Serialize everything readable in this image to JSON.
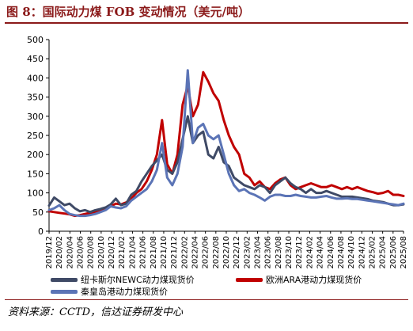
{
  "figure": {
    "title": "图 8：国际动力煤 FOB 变动情况（美元/吨）",
    "source": "资料来源：CCTD，信达证券研发中心"
  },
  "colors": {
    "newc": "#3f4a66",
    "ara": "#c00000",
    "qinhuangdao": "#5b74b6",
    "title": "#8b1a1a"
  },
  "chart_data": {
    "type": "line",
    "title": "",
    "xlabel": "",
    "ylabel": "",
    "ylim": [
      0,
      500
    ],
    "yticks": [
      0,
      50,
      100,
      150,
      200,
      250,
      300,
      350,
      400,
      450,
      500
    ],
    "grid": false,
    "legend_position": "bottom",
    "xticks": [
      "2019/12",
      "2020/03",
      "2020/06",
      "2020/09",
      "2020/12",
      "2021/03",
      "2021/06",
      "2021/09",
      "2021/12",
      "2022/03",
      "2022/06",
      "2022/09",
      "2022/12",
      "2023/03",
      "2023/06",
      "2023/09",
      "2023/12",
      "2024/03",
      "2024/06",
      "2024/09",
      "2024/12",
      "2025/03",
      "2025/06",
      "2025/09"
    ],
    "xticklabels": [
      "2019/12",
      "2020/02",
      "2020/04",
      "2020/06",
      "2020/08",
      "2020/10",
      "2020/12",
      "2021/02",
      "2021/04",
      "2021/06",
      "2021/08",
      "2021/10",
      "2021/12",
      "2022/02",
      "2022/04",
      "2022/06",
      "2022/08",
      "2022/10",
      "2022/12",
      "2023/02",
      "2023/04",
      "2023/06",
      "2023/08",
      "2023/10",
      "2023/12",
      "2024/02",
      "2024/04",
      "2024/06",
      "2024/08",
      "2024/10",
      "2024/12",
      "2025/02",
      "2025/04",
      "2025/06",
      "2025/08"
    ],
    "x": [
      "2019/12",
      "2020/01",
      "2020/02",
      "2020/03",
      "2020/04",
      "2020/05",
      "2020/06",
      "2020/07",
      "2020/08",
      "2020/09",
      "2020/10",
      "2020/11",
      "2020/12",
      "2021/01",
      "2021/02",
      "2021/03",
      "2021/04",
      "2021/05",
      "2021/06",
      "2021/07",
      "2021/08",
      "2021/09",
      "2021/10",
      "2021/11",
      "2021/12",
      "2022/01",
      "2022/02",
      "2022/03",
      "2022/04",
      "2022/05",
      "2022/06",
      "2022/07",
      "2022/08",
      "2022/09",
      "2022/10",
      "2022/11",
      "2022/12",
      "2023/01",
      "2023/02",
      "2023/03",
      "2023/04",
      "2023/05",
      "2023/06",
      "2023/07",
      "2023/08",
      "2023/09",
      "2023/10",
      "2023/11",
      "2023/12",
      "2024/01",
      "2024/02",
      "2024/03",
      "2024/04",
      "2024/05",
      "2024/06",
      "2024/07",
      "2024/08",
      "2024/09",
      "2024/10",
      "2024/11",
      "2024/12",
      "2025/01",
      "2025/02",
      "2025/03",
      "2025/04",
      "2025/05",
      "2025/06",
      "2025/07",
      "2025/08",
      "2025/09"
    ],
    "series": [
      {
        "name": "纽卡斯尔NEWC动力煤现货价",
        "color": "#3f4a66",
        "values": [
          67,
          88,
          78,
          68,
          72,
          60,
          52,
          55,
          50,
          55,
          58,
          62,
          70,
          85,
          68,
          72,
          95,
          105,
          130,
          150,
          170,
          185,
          200,
          160,
          150,
          180,
          240,
          300,
          230,
          250,
          260,
          200,
          190,
          220,
          180,
          170,
          140,
          130,
          120,
          115,
          110,
          120,
          115,
          100,
          120,
          130,
          140,
          125,
          115,
          110,
          100,
          110,
          100,
          100,
          105,
          100,
          95,
          90,
          90,
          90,
          88,
          86,
          84,
          80,
          78,
          76,
          72,
          68,
          68,
          70
        ]
      },
      {
        "name": "欧洲ARA港动力煤现货价",
        "color": "#c00000",
        "values": [
          52,
          50,
          48,
          46,
          44,
          40,
          42,
          45,
          48,
          50,
          52,
          58,
          65,
          72,
          70,
          75,
          85,
          100,
          110,
          130,
          160,
          200,
          290,
          175,
          150,
          200,
          330,
          380,
          300,
          330,
          415,
          390,
          360,
          340,
          290,
          250,
          220,
          200,
          150,
          140,
          120,
          130,
          115,
          110,
          125,
          135,
          140,
          120,
          110,
          115,
          120,
          125,
          120,
          115,
          115,
          120,
          115,
          110,
          115,
          110,
          115,
          110,
          105,
          102,
          98,
          100,
          105,
          95,
          95,
          92
        ]
      },
      {
        "name": "秦皇岛港动力煤现货价",
        "color": "#5b74b6",
        "values": [
          55,
          60,
          68,
          55,
          45,
          42,
          40,
          40,
          42,
          45,
          50,
          55,
          65,
          62,
          60,
          65,
          80,
          90,
          100,
          110,
          130,
          160,
          230,
          140,
          120,
          150,
          220,
          420,
          230,
          270,
          280,
          250,
          240,
          250,
          200,
          150,
          120,
          105,
          110,
          100,
          95,
          88,
          80,
          90,
          95,
          95,
          92,
          92,
          95,
          92,
          90,
          88,
          88,
          90,
          92,
          88,
          85,
          85,
          86,
          84,
          84,
          82,
          80,
          78,
          76,
          74,
          72,
          70,
          68,
          72
        ]
      }
    ]
  }
}
